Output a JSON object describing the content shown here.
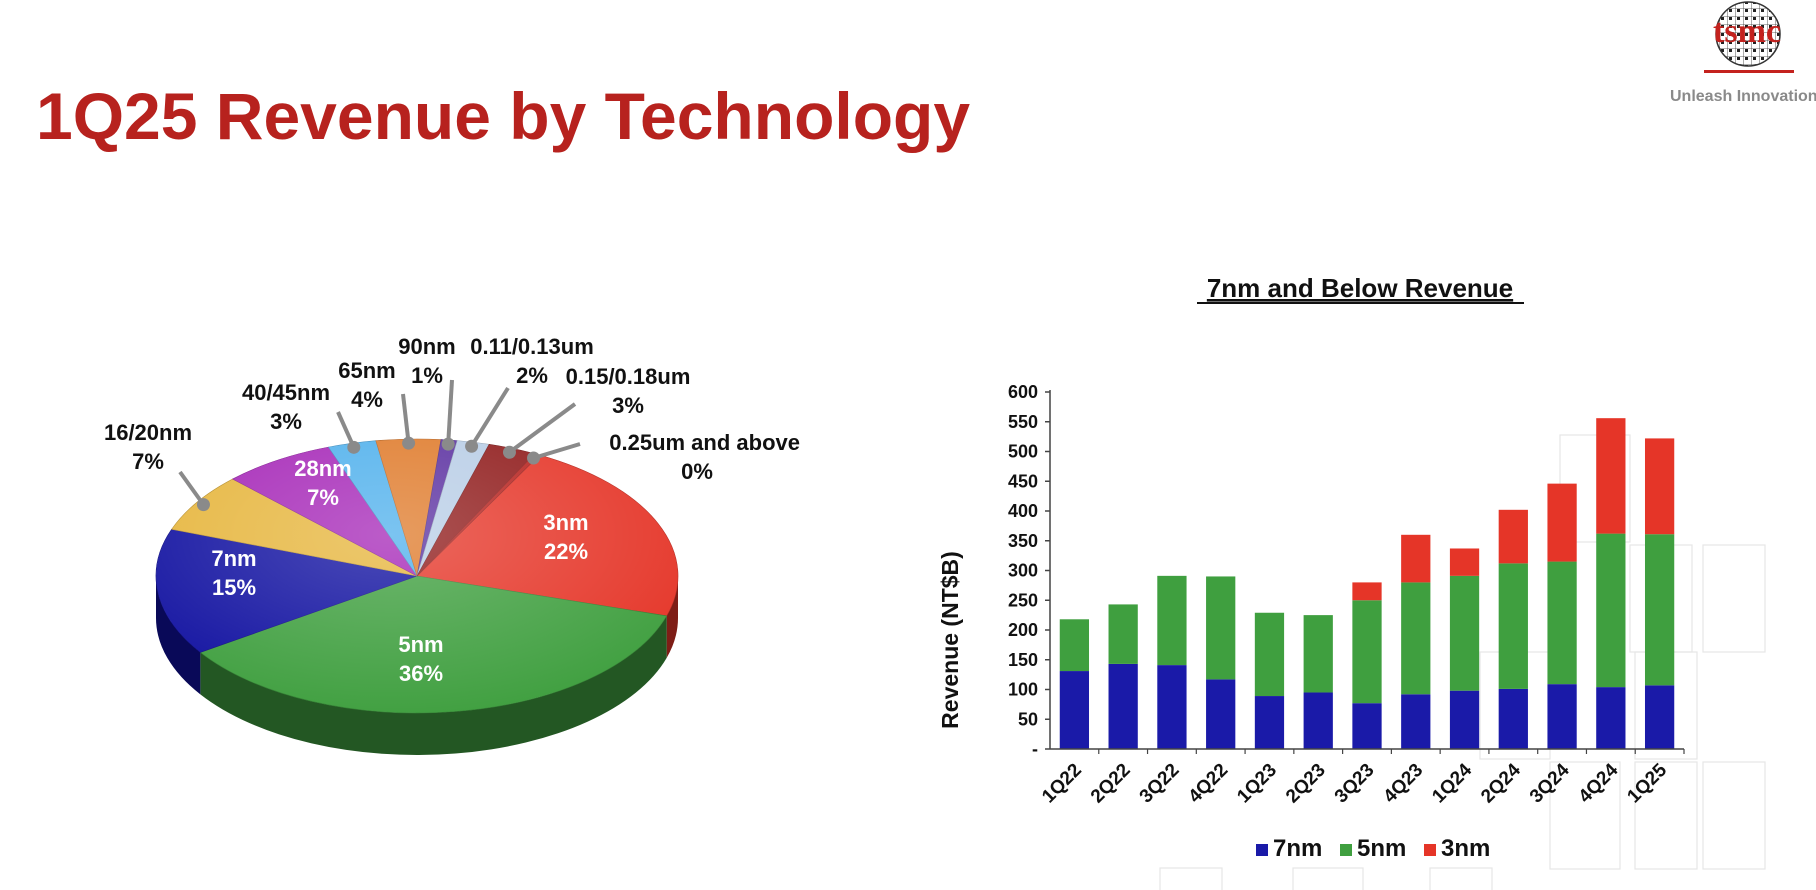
{
  "page": {
    "title": "1Q25 Revenue by Technology",
    "tagline": "Unleash Innovation",
    "logo_text": "tsmc"
  },
  "colors": {
    "title": "#b7221e",
    "n3": "#e53528",
    "n5": "#3f9f3f",
    "n7": "#1a1aa8"
  },
  "chart_data": [
    {
      "type": "pie",
      "title": "",
      "slices": [
        {
          "name": "3nm",
          "value": 22,
          "label": "3nm",
          "pct": "22%",
          "color": "#e53528"
        },
        {
          "name": "5nm",
          "value": 36,
          "label": "5nm",
          "pct": "36%",
          "color": "#3f9f3f"
        },
        {
          "name": "7nm",
          "value": 15,
          "label": "7nm",
          "pct": "15%",
          "color": "#1010a0"
        },
        {
          "name": "16/20nm",
          "value": 7,
          "label": "16/20nm",
          "pct": "7%",
          "color": "#e6b53c"
        },
        {
          "name": "28nm",
          "value": 7,
          "label": "28nm",
          "pct": "7%",
          "color": "#a526b7"
        },
        {
          "name": "40/45nm",
          "value": 3,
          "label": "40/45nm",
          "pct": "3%",
          "color": "#4fb0ec"
        },
        {
          "name": "65nm",
          "value": 4,
          "label": "65nm",
          "pct": "4%",
          "color": "#df7a2a"
        },
        {
          "name": "90nm",
          "value": 1,
          "label": "90nm",
          "pct": "1%",
          "color": "#5a2fa0"
        },
        {
          "name": "0.11/0.13um",
          "value": 2,
          "label": "0.11/0.13um",
          "pct": "2%",
          "color": "#b8cde6"
        },
        {
          "name": "0.15/0.18um",
          "value": 3,
          "label": "0.15/0.18um",
          "pct": "3%",
          "color": "#8f1a1a"
        },
        {
          "name": "0.25um and above",
          "value": 0,
          "label": "0.25um and above",
          "pct": "0%",
          "color": "#b7221e"
        }
      ]
    },
    {
      "type": "bar",
      "stacked": true,
      "title": "7nm and Below Revenue",
      "ylabel": "Revenue (NT$B)",
      "xlabel": "",
      "ylim": [
        0,
        600
      ],
      "yticks": [
        0,
        50,
        100,
        150,
        200,
        250,
        300,
        350,
        400,
        450,
        500,
        550,
        600
      ],
      "ytick_labels": [
        "-",
        "50",
        "100",
        "150",
        "200",
        "250",
        "300",
        "350",
        "400",
        "450",
        "500",
        "550",
        "600"
      ],
      "categories": [
        "1Q22",
        "2Q22",
        "3Q22",
        "4Q22",
        "1Q23",
        "2Q23",
        "3Q23",
        "4Q23",
        "1Q24",
        "2Q24",
        "3Q24",
        "4Q24",
        "1Q25"
      ],
      "series": [
        {
          "name": "7nm",
          "color": "#1a1aa8",
          "values": [
            131,
            143,
            141,
            117,
            89,
            95,
            77,
            92,
            98,
            101,
            109,
            104,
            107
          ]
        },
        {
          "name": "5nm",
          "color": "#3f9f3f",
          "values": [
            87,
            100,
            150,
            173,
            140,
            130,
            173,
            188,
            193,
            211,
            206,
            258,
            254
          ]
        },
        {
          "name": "3nm",
          "color": "#e53528",
          "values": [
            0,
            0,
            0,
            0,
            0,
            0,
            30,
            80,
            46,
            90,
            131,
            194,
            161
          ]
        }
      ],
      "legend": "bottom"
    }
  ]
}
